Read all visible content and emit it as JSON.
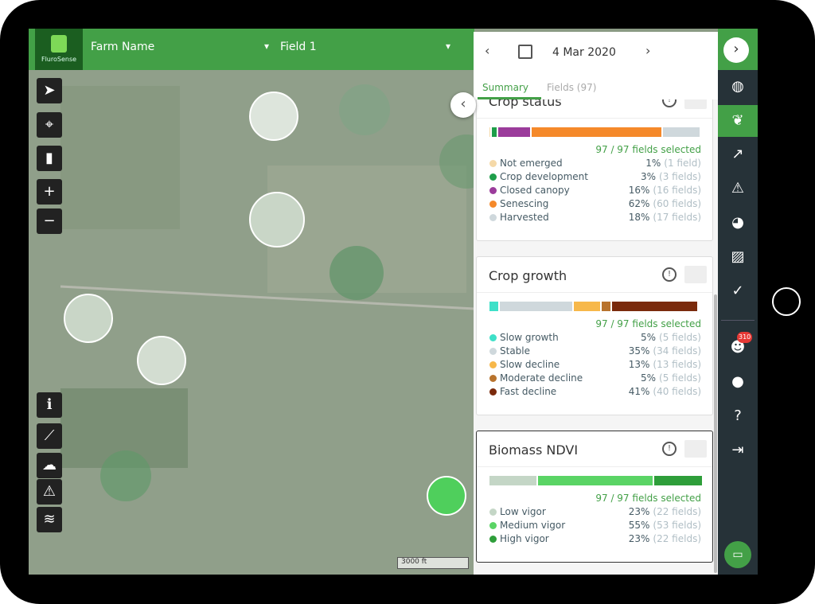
{
  "header": {
    "logo_text": "FluroSense",
    "farm": "Farm Name",
    "field": "Field 1"
  },
  "date": "4 Mar 2020",
  "tabs": [
    "Summary",
    "Fields (97)"
  ],
  "cards": [
    {
      "title": "Crop status",
      "selected": "97 / 97 fields selected",
      "items": [
        {
          "label": "Not emerged",
          "pct": 1,
          "pct_label": "1%",
          "count": "(1 field)",
          "color": "#f5d9a8"
        },
        {
          "label": "Crop development",
          "pct": 3,
          "pct_label": "3%",
          "count": "(3 fields)",
          "color": "#1e9e4a"
        },
        {
          "label": "Closed canopy",
          "pct": 16,
          "pct_label": "16%",
          "count": "(16 fields)",
          "color": "#9b3c9b"
        },
        {
          "label": "Senescing",
          "pct": 62,
          "pct_label": "62%",
          "count": "(60 fields)",
          "color": "#f5892a"
        },
        {
          "label": "Harvested",
          "pct": 18,
          "pct_label": "18%",
          "count": "(17 fields)",
          "color": "#cfd8dc"
        }
      ]
    },
    {
      "title": "Crop growth",
      "selected": "97 / 97 fields selected",
      "items": [
        {
          "label": "Slow growth",
          "pct": 5,
          "pct_label": "5%",
          "count": "(5 fields)",
          "color": "#3ee0c8"
        },
        {
          "label": "Stable",
          "pct": 35,
          "pct_label": "35%",
          "count": "(34 fields)",
          "color": "#cfd8dc"
        },
        {
          "label": "Slow decline",
          "pct": 13,
          "pct_label": "13%",
          "count": "(13 fields)",
          "color": "#f7b84a"
        },
        {
          "label": "Moderate decline",
          "pct": 5,
          "pct_label": "5%",
          "count": "(5 fields)",
          "color": "#b8732d"
        },
        {
          "label": "Fast decline",
          "pct": 41,
          "pct_label": "41%",
          "count": "(40 fields)",
          "color": "#7a2a0c"
        }
      ]
    },
    {
      "title": "Biomass NDVI",
      "selected": "97 / 97 fields selected",
      "items": [
        {
          "label": "Low vigor",
          "pct": 23,
          "pct_label": "23%",
          "count": "(22 fields)",
          "color": "#c4d6c6"
        },
        {
          "label": "Medium vigor",
          "pct": 55,
          "pct_label": "55%",
          "count": "(53 fields)",
          "color": "#5ad465"
        },
        {
          "label": "High vigor",
          "pct": 23,
          "pct_label": "23%",
          "count": "(22 fields)",
          "color": "#2e9e3a"
        }
      ]
    }
  ],
  "badge": "310",
  "scale": "3000 ft"
}
